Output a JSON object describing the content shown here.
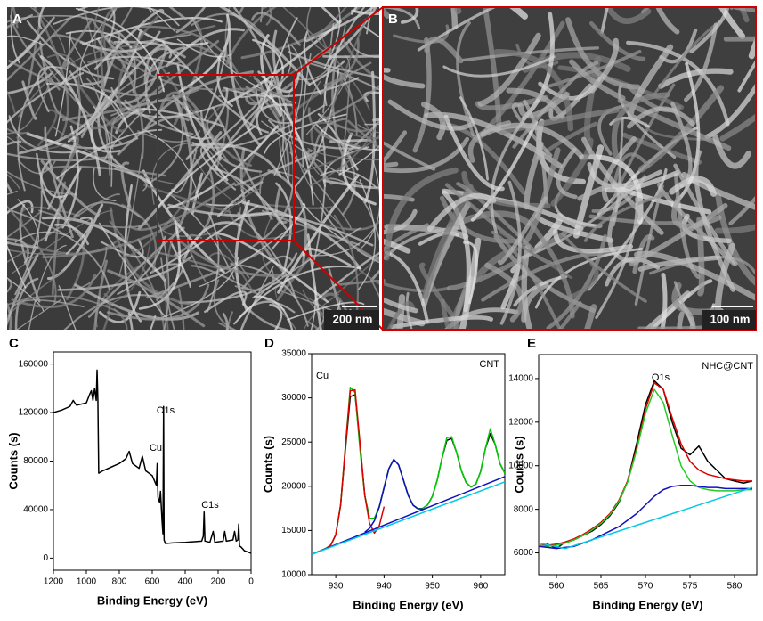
{
  "images": [
    {
      "panel_label": "A",
      "scale_bar": "200 nm"
    },
    {
      "panel_label": "B",
      "scale_bar": "100 nm"
    }
  ],
  "chart_data": [
    {
      "type": "line",
      "panel_label": "C",
      "xlabel": "Binding Energy (eV)",
      "ylabel": "Counts (s)",
      "annotations": [
        "O1s",
        "Cu",
        "C1s"
      ],
      "xlim": [
        1200,
        0
      ],
      "ylim": [
        -10000,
        170000
      ],
      "xticks": [
        1200,
        1000,
        800,
        600,
        400,
        200,
        0
      ],
      "yticks": [
        0,
        40000,
        80000,
        120000,
        160000
      ],
      "x": [
        1200,
        1150,
        1100,
        1080,
        1060,
        1000,
        980,
        970,
        960,
        950,
        940,
        935,
        930,
        925,
        900,
        800,
        760,
        740,
        720,
        680,
        660,
        640,
        600,
        575,
        570,
        565,
        555,
        550,
        540,
        535,
        531,
        528,
        520,
        480,
        400,
        300,
        290,
        285,
        280,
        250,
        230,
        220,
        170,
        160,
        150,
        110,
        100,
        90,
        80,
        75,
        70,
        60,
        40,
        20,
        0
      ],
      "series": [
        {
          "color": "#000000",
          "values": [
            120000,
            122000,
            125000,
            130000,
            126000,
            128000,
            135000,
            138000,
            130000,
            140000,
            130000,
            155000,
            130000,
            70000,
            72000,
            78000,
            82000,
            88000,
            78000,
            74000,
            84000,
            72000,
            68000,
            60000,
            78000,
            50000,
            46000,
            55000,
            30000,
            20000,
            125000,
            15000,
            12000,
            12500,
            13000,
            14000,
            18000,
            38000,
            14000,
            13000,
            22000,
            13000,
            14000,
            22000,
            14000,
            15000,
            22000,
            14000,
            15000,
            28000,
            10000,
            9000,
            6000,
            5000,
            4000
          ]
        }
      ]
    },
    {
      "type": "line",
      "panel_label": "D",
      "xlabel": "Binding Energy (eV)",
      "ylabel": "Counts (s)",
      "annotations": [
        "Cu",
        "CNT"
      ],
      "xlim": [
        925,
        965
      ],
      "ylim": [
        10000,
        35000
      ],
      "xticks": [
        930,
        940,
        950,
        960
      ],
      "yticks": [
        10000,
        15000,
        20000,
        25000,
        30000,
        35000
      ],
      "x": [
        925,
        926,
        927,
        928,
        929,
        930,
        931,
        932,
        933,
        934,
        935,
        936,
        937,
        938,
        939,
        940,
        941,
        942,
        943,
        944,
        945,
        946,
        947,
        948,
        949,
        950,
        951,
        952,
        953,
        954,
        955,
        956,
        957,
        958,
        959,
        960,
        961,
        962,
        963,
        964,
        965
      ],
      "series": [
        {
          "color": "#000000",
          "values": [
            12300,
            12520,
            12740,
            12980,
            13370,
            14520,
            17870,
            24160,
            30140,
            30360,
            24820,
            18970,
            16390,
            16360,
            17655,
            19850,
            22000,
            23040,
            22440,
            20730,
            18975,
            17865,
            17470,
            17500,
            17890,
            18860,
            20690,
            23190,
            25190,
            25410,
            23850,
            21790,
            20400,
            19920,
            20230,
            21680,
            24310,
            25940,
            24750,
            22560,
            21485
          ]
        },
        {
          "color": "#00cc00",
          "values": [
            12300,
            12520,
            12740,
            12980,
            13370,
            14520,
            17870,
            24600,
            31200,
            30600,
            24200,
            18970,
            16390,
            16360,
            17655,
            19850,
            22000,
            23040,
            22440,
            20730,
            18975,
            17865,
            17470,
            17500,
            17890,
            18860,
            20690,
            23190,
            25500,
            25600,
            23850,
            21790,
            20400,
            19920,
            20230,
            21680,
            24310,
            26500,
            24750,
            22560,
            21485
          ]
        },
        {
          "color": "#dd0000",
          "x": [
            928,
            929,
            930,
            931,
            932,
            933,
            934,
            935,
            936,
            937,
            938,
            939,
            940
          ],
          "values": [
            12960,
            13370,
            14520,
            17870,
            24500,
            30800,
            30900,
            25000,
            19000,
            15800,
            14700,
            15500,
            17700
          ]
        },
        {
          "color": "#1010c0",
          "x": [
            936,
            937,
            938,
            939,
            940,
            941,
            942,
            943,
            944,
            945,
            946,
            947,
            948
          ],
          "values": [
            14800,
            15250,
            16105,
            17655,
            19850,
            22000,
            23040,
            22440,
            20730,
            18975,
            17865,
            17455,
            17437
          ]
        },
        {
          "color": "#1010c0",
          "x": [
            925,
            965
          ],
          "values": [
            12300,
            21100
          ]
        },
        {
          "color": "#00c8e6",
          "x": [
            925,
            965
          ],
          "values": [
            12300,
            20500
          ]
        }
      ]
    },
    {
      "type": "line",
      "panel_label": "E",
      "xlabel": "Binding Energy (eV)",
      "ylabel": "Counts (s)",
      "annotations": [
        "NHC@CNT",
        "O1s"
      ],
      "xlim": [
        558,
        582.5
      ],
      "ylim": [
        5000,
        15100
      ],
      "xticks": [
        560,
        565,
        570,
        575,
        580
      ],
      "yticks": [
        6000,
        8000,
        10000,
        12000,
        14000
      ],
      "x": [
        558,
        559,
        560,
        561,
        562,
        563,
        564,
        565,
        566,
        567,
        568,
        569,
        570,
        571,
        572,
        573,
        574,
        575,
        576,
        577,
        578,
        579,
        580,
        581,
        582
      ],
      "series": [
        {
          "color": "#000000",
          "values": [
            6300,
            6400,
            6200,
            6500,
            6600,
            6800,
            7000,
            7300,
            7700,
            8300,
            9300,
            11000,
            12800,
            13900,
            13500,
            12000,
            10800,
            10500,
            10900,
            10200,
            9800,
            9400,
            9300,
            9200,
            9300
          ]
        },
        {
          "color": "#dd0000",
          "values": [
            6350,
            6350,
            6400,
            6500,
            6650,
            6850,
            7100,
            7400,
            7800,
            8400,
            9300,
            10800,
            12600,
            13800,
            13500,
            12200,
            11000,
            10200,
            9800,
            9600,
            9500,
            9400,
            9350,
            9300,
            9300
          ]
        },
        {
          "color": "#22cc22",
          "values": [
            6350,
            6300,
            6350,
            6450,
            6600,
            6800,
            7050,
            7350,
            7750,
            8350,
            9250,
            10700,
            12400,
            13500,
            12900,
            11400,
            10000,
            9300,
            9000,
            8900,
            8850,
            8850,
            8850,
            8900,
            8900
          ]
        },
        {
          "color": "#1010c0",
          "values": [
            6300,
            6250,
            6200,
            6250,
            6300,
            6450,
            6600,
            6800,
            7000,
            7200,
            7500,
            7800,
            8200,
            8600,
            8900,
            9050,
            9100,
            9100,
            9050,
            9000,
            9000,
            8950,
            8950,
            8950,
            8950
          ]
        },
        {
          "color": "#00c8e6",
          "x": [
            558,
            561,
            582
          ],
          "values": [
            6450,
            6200,
            9000
          ]
        }
      ]
    }
  ]
}
